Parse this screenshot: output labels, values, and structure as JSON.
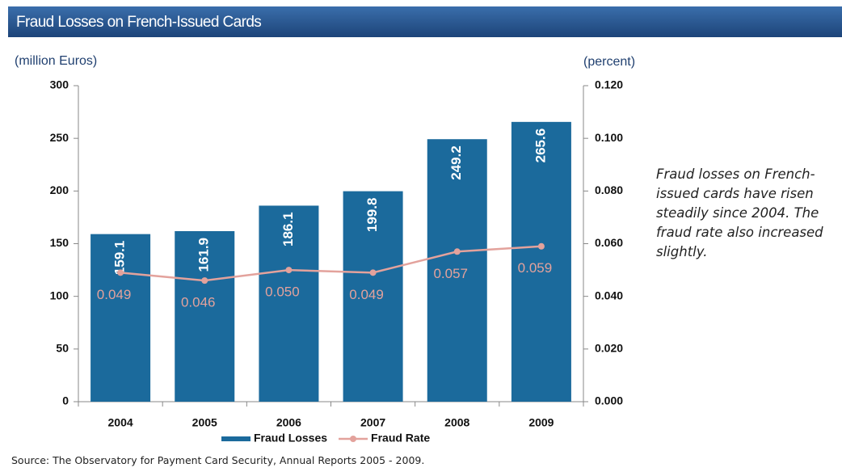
{
  "chart_data": {
    "type": "bar",
    "title": "Fraud Losses on French-Issued Cards",
    "y_label": "(million Euros)",
    "y2_label": "(percent)",
    "annotation": "Fraud losses on French-issued cards have risen steadily since 2004. The fraud rate also increased slightly.",
    "source": "Source: The Observatory for Payment Card Security, Annual Reports 2005 - 2009.",
    "categories": [
      "2004",
      "2005",
      "2006",
      "2007",
      "2008",
      "2009"
    ],
    "series": [
      {
        "name": "Fraud Losses",
        "type": "bar",
        "color": "#1b6a9c",
        "values": [
          159.1,
          161.9,
          186.1,
          199.8,
          249.2,
          265.6
        ]
      },
      {
        "name": "Fraud Rate",
        "type": "line",
        "axis": "y2",
        "color": "#e3a29c",
        "values": [
          0.049,
          0.046,
          0.05,
          0.049,
          0.057,
          0.059
        ],
        "value_labels": [
          "0.049",
          "0.046",
          "0.050",
          "0.049",
          "0.057",
          "0.059"
        ]
      }
    ],
    "ylim": [
      0,
      300
    ],
    "yticks": [
      0,
      50,
      100,
      150,
      200,
      250,
      300
    ],
    "y2lim": [
      0,
      0.12
    ],
    "y2ticks": [
      {
        "value": 0,
        "label": "0.000"
      },
      {
        "value": 0.02,
        "label": "0.020"
      },
      {
        "value": 0.04,
        "label": "0.040"
      },
      {
        "value": 0.06,
        "label": "0.060"
      },
      {
        "value": 0.08,
        "label": "0.080"
      },
      {
        "value": 0.1,
        "label": "0.100"
      },
      {
        "value": 0.12,
        "label": "0.120"
      }
    ],
    "legend": "bottom"
  }
}
